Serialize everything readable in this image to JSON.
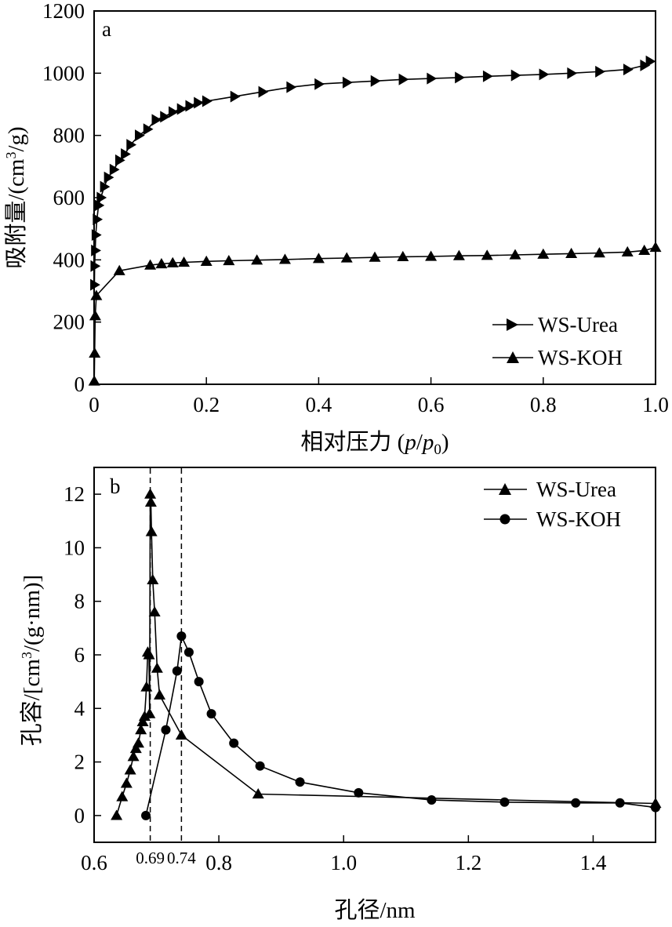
{
  "chart_data": [
    {
      "type": "line",
      "panel_label": "a",
      "xlabel_text": "相对压力 (",
      "xlabel_p": "p",
      "xlabel_slash": "/",
      "xlabel_p0": "p",
      "xlabel_sub": "0",
      "xlabel_close": ")",
      "ylabel": "吸附量/(cm",
      "ylabel_sup": "3",
      "ylabel_end": "/g)",
      "xlim": [
        0,
        1.0
      ],
      "ylim": [
        0,
        1200
      ],
      "xticks": [
        "0",
        "0.2",
        "0.4",
        "0.6",
        "0.8",
        "1.0"
      ],
      "yticks": [
        "0",
        "200",
        "400",
        "600",
        "800",
        "1000",
        "1200"
      ],
      "legend_position": "bottom-right",
      "series": [
        {
          "name": "WS-Urea",
          "marker": "triangle-right",
          "x": [
            0.0005,
            0.001,
            0.002,
            0.003,
            0.005,
            0.008,
            0.012,
            0.018,
            0.025,
            0.035,
            0.045,
            0.055,
            0.065,
            0.08,
            0.095,
            0.11,
            0.125,
            0.14,
            0.155,
            0.17,
            0.185,
            0.2,
            0.25,
            0.3,
            0.35,
            0.4,
            0.45,
            0.5,
            0.55,
            0.6,
            0.65,
            0.7,
            0.75,
            0.8,
            0.85,
            0.9,
            0.95,
            0.98,
            0.99
          ],
          "y": [
            320,
            380,
            430,
            480,
            530,
            575,
            600,
            635,
            665,
            690,
            720,
            740,
            770,
            800,
            820,
            850,
            860,
            875,
            885,
            895,
            905,
            910,
            925,
            940,
            955,
            965,
            970,
            975,
            980,
            983,
            986,
            990,
            993,
            996,
            1000,
            1005,
            1012,
            1025,
            1038
          ]
        },
        {
          "name": "WS-KOH",
          "marker": "triangle-up",
          "x": [
            0.0003,
            0.001,
            0.002,
            0.004,
            0.045,
            0.1,
            0.12,
            0.14,
            0.16,
            0.2,
            0.24,
            0.29,
            0.34,
            0.4,
            0.45,
            0.5,
            0.55,
            0.6,
            0.65,
            0.7,
            0.75,
            0.8,
            0.85,
            0.9,
            0.95,
            0.98,
            1.0
          ],
          "y": [
            10,
            100,
            220,
            285,
            365,
            383,
            387,
            390,
            392,
            395,
            397,
            399,
            401,
            404,
            406,
            408,
            410,
            411,
            413,
            414,
            416,
            418,
            420,
            422,
            425,
            430,
            440
          ]
        }
      ]
    },
    {
      "type": "line",
      "panel_label": "b",
      "xlabel": "孔径/nm",
      "ylabel": "孔容/[cm",
      "ylabel_sup": "3",
      "ylabel_end": "/(g·nm)]",
      "xlim": [
        0.6,
        1.5
      ],
      "ylim": [
        -1,
        13
      ],
      "xticks": [
        "0.6",
        "0.8",
        "1.0",
        "1.2",
        "1.4"
      ],
      "yticks": [
        "0",
        "2",
        "4",
        "6",
        "8",
        "10",
        "12"
      ],
      "legend_position": "top-right",
      "vlines": [
        {
          "x": 0.69,
          "label": "0.69"
        },
        {
          "x": 0.74,
          "label": "0.74"
        }
      ],
      "series": [
        {
          "name": "WS-Urea",
          "marker": "triangle-up",
          "x": [
            0.636,
            0.645,
            0.652,
            0.658,
            0.663,
            0.667,
            0.671,
            0.675,
            0.678,
            0.681,
            0.684,
            0.686,
            0.688,
            0.689,
            0.69,
            0.691,
            0.692,
            0.694,
            0.697,
            0.701,
            0.705,
            0.74,
            0.863,
            1.5
          ],
          "y": [
            0.0,
            0.7,
            1.2,
            1.7,
            2.2,
            2.5,
            2.7,
            3.2,
            3.5,
            3.7,
            4.8,
            6.1,
            6.0,
            3.8,
            12.0,
            11.7,
            10.6,
            8.8,
            7.6,
            5.5,
            4.5,
            3.0,
            0.8,
            0.45
          ]
        },
        {
          "name": "WS-KOH",
          "marker": "circle",
          "x": [
            0.683,
            0.715,
            0.733,
            0.74,
            0.752,
            0.768,
            0.788,
            0.824,
            0.866,
            0.93,
            1.024,
            1.141,
            1.258,
            1.372,
            1.443,
            1.5
          ],
          "y": [
            0.0,
            3.2,
            5.4,
            6.7,
            6.1,
            5.0,
            3.8,
            2.7,
            1.85,
            1.25,
            0.85,
            0.58,
            0.5,
            0.47,
            0.47,
            0.3
          ]
        }
      ]
    }
  ]
}
